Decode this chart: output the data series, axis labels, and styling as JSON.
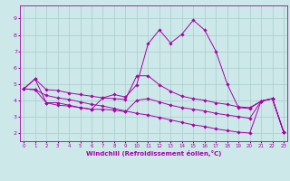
{
  "title": "",
  "xlabel": "Windchill (Refroidissement éolien,°C)",
  "ylabel": "",
  "bg_color": "#cce8e8",
  "line_color": "#aa00aa",
  "grid_color": "#aacccc",
  "x_ticks": [
    0,
    1,
    2,
    3,
    4,
    5,
    6,
    7,
    8,
    9,
    10,
    11,
    12,
    13,
    14,
    15,
    16,
    17,
    18,
    19,
    20,
    21,
    22,
    23
  ],
  "y_ticks": [
    2,
    3,
    4,
    5,
    6,
    7,
    8,
    9
  ],
  "ylim": [
    1.5,
    9.8
  ],
  "xlim": [
    -0.3,
    23.3
  ],
  "series": [
    {
      "x": [
        0,
        1,
        2,
        3,
        4,
        5,
        6,
        7,
        8,
        9,
        10,
        11,
        12,
        13,
        14,
        15,
        16,
        17,
        18,
        19,
        20,
        21,
        22,
        23
      ],
      "y": [
        4.7,
        5.3,
        3.85,
        3.85,
        3.7,
        3.55,
        3.45,
        4.15,
        4.35,
        4.2,
        4.95,
        7.45,
        8.3,
        7.5,
        8.05,
        8.9,
        8.3,
        7.0,
        5.0,
        3.55,
        3.5,
        3.95,
        4.1,
        2.05
      ]
    },
    {
      "x": [
        0,
        1,
        2,
        3,
        4,
        5,
        6,
        7,
        8,
        9,
        10,
        11,
        12,
        13,
        14,
        15,
        16,
        17,
        18,
        19,
        20,
        21,
        22,
        23
      ],
      "y": [
        4.7,
        5.3,
        4.65,
        4.6,
        4.45,
        4.35,
        4.25,
        4.15,
        4.1,
        4.05,
        5.5,
        5.5,
        4.95,
        4.55,
        4.25,
        4.1,
        4.0,
        3.85,
        3.75,
        3.6,
        3.55,
        3.95,
        4.1,
        2.05
      ]
    },
    {
      "x": [
        0,
        1,
        2,
        3,
        4,
        5,
        6,
        7,
        8,
        9,
        10,
        11,
        12,
        13,
        14,
        15,
        16,
        17,
        18,
        19,
        20,
        21,
        22,
        23
      ],
      "y": [
        4.7,
        4.65,
        3.85,
        3.7,
        3.65,
        3.55,
        3.45,
        3.45,
        3.4,
        3.3,
        4.0,
        4.1,
        3.9,
        3.7,
        3.55,
        3.45,
        3.35,
        3.2,
        3.1,
        3.0,
        2.9,
        3.95,
        4.1,
        2.05
      ]
    },
    {
      "x": [
        0,
        1,
        2,
        3,
        4,
        5,
        6,
        7,
        8,
        9,
        10,
        11,
        12,
        13,
        14,
        15,
        16,
        17,
        18,
        19,
        20,
        21,
        22,
        23
      ],
      "y": [
        4.7,
        4.65,
        4.3,
        4.15,
        4.05,
        3.9,
        3.75,
        3.65,
        3.5,
        3.35,
        3.2,
        3.1,
        2.95,
        2.8,
        2.65,
        2.5,
        2.4,
        2.25,
        2.15,
        2.05,
        2.0,
        3.95,
        4.1,
        2.05
      ]
    }
  ]
}
